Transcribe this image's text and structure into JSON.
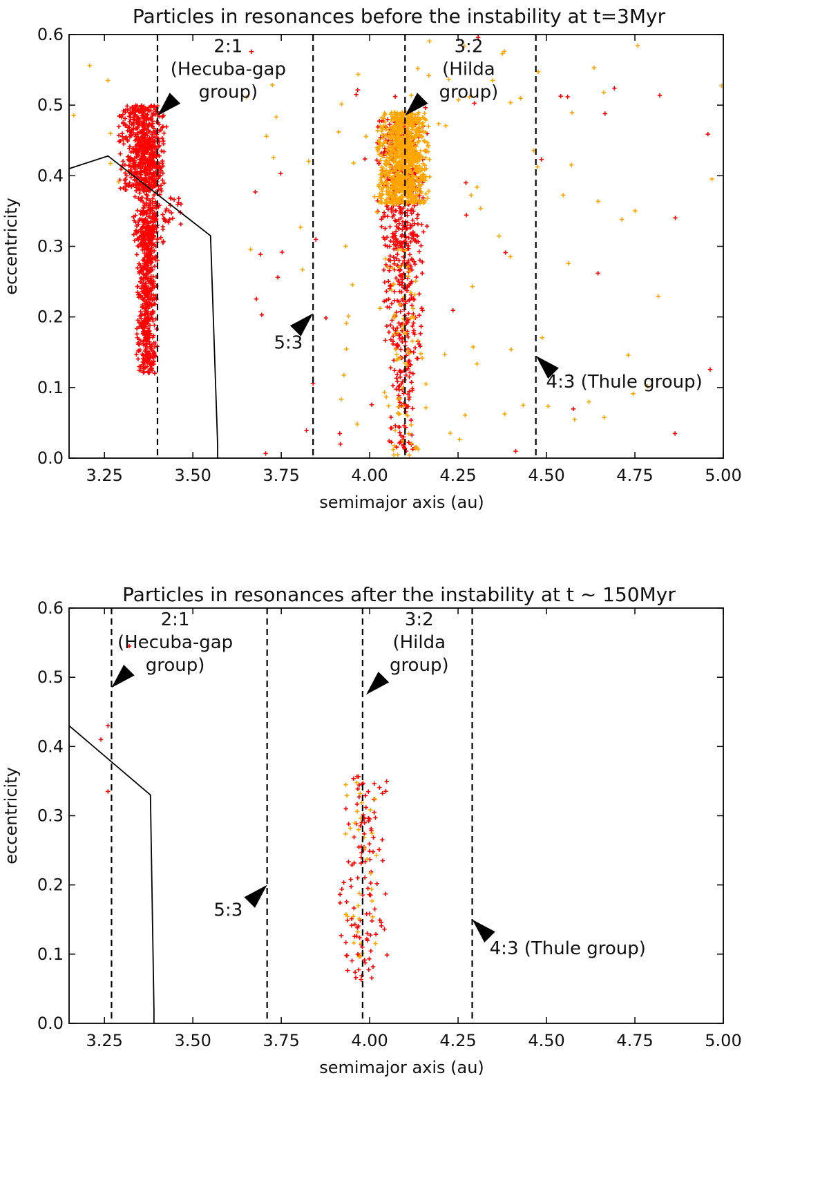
{
  "chart_data": [
    {
      "type": "scatter",
      "title": "Particles in resonances before the instability at t=3Myr",
      "xlabel": "semimajor axis (au)",
      "ylabel": "eccentricity",
      "xlim": [
        3.15,
        5.0
      ],
      "ylim": [
        0.0,
        0.6
      ],
      "x_ticks": [
        3.25,
        3.5,
        3.75,
        4.0,
        4.25,
        4.5,
        4.75,
        5.0
      ],
      "x_tick_labels": [
        "3.25",
        "3.50",
        "3.75",
        "4.00",
        "4.25",
        "4.50",
        "4.75",
        "5.00"
      ],
      "y_ticks": [
        0.0,
        0.1,
        0.2,
        0.3,
        0.4,
        0.5,
        0.6
      ],
      "y_tick_labels": [
        "0.0",
        "0.1",
        "0.2",
        "0.3",
        "0.4",
        "0.5",
        "0.6"
      ],
      "colors": {
        "red": "#ff0000",
        "orange": "#ffa500",
        "line": "#000000"
      },
      "boundary_line": {
        "x": [
          3.15,
          3.26,
          3.55,
          3.57,
          3.57
        ],
        "y": [
          0.41,
          0.428,
          0.315,
          0.02,
          0.0
        ]
      },
      "resonance_lines": [
        3.4,
        3.84,
        4.1,
        4.47
      ],
      "labels": [
        {
          "id": "res21",
          "lines": [
            "2:1",
            "(Hecuba-gap",
            "group)"
          ],
          "x": 3.6,
          "y": 0.575
        },
        {
          "id": "res32",
          "lines": [
            "3:2",
            "(Hilda",
            "group)"
          ],
          "x": 4.28,
          "y": 0.575
        },
        {
          "id": "res53",
          "lines": [
            "5:3"
          ],
          "x": 3.77,
          "y": 0.155
        },
        {
          "id": "res43",
          "lines": [
            "4:3 (Thule group)"
          ],
          "x": 4.72,
          "y": 0.1
        }
      ],
      "arrows": [
        {
          "id": "arrow21",
          "tip_x": 3.4,
          "tip_y": 0.485,
          "dir_x": 1,
          "dir_y": 1
        },
        {
          "id": "arrow32",
          "tip_x": 4.1,
          "tip_y": 0.485,
          "dir_x": 1,
          "dir_y": 1
        },
        {
          "id": "arrow53",
          "tip_x": 3.84,
          "tip_y": 0.205,
          "dir_x": -1,
          "dir_y": -1
        },
        {
          "id": "arrow43",
          "tip_x": 4.47,
          "tip_y": 0.145,
          "dir_x": 1,
          "dir_y": -1
        }
      ],
      "series": [
        {
          "name": "red",
          "color": "#ff0000",
          "clusters": [
            {
              "x": [
                3.29,
                3.43
              ],
              "y": [
                0.38,
                0.5
              ],
              "n": 500
            },
            {
              "x": [
                3.33,
                3.42
              ],
              "y": [
                0.3,
                0.45
              ],
              "n": 300
            },
            {
              "x": [
                3.34,
                3.4
              ],
              "y": [
                0.12,
                0.34
              ],
              "n": 500
            },
            {
              "x": [
                3.42,
                3.47
              ],
              "y": [
                0.33,
                0.37
              ],
              "n": 20
            },
            {
              "x": [
                4.02,
                4.17
              ],
              "y": [
                0.3,
                0.48
              ],
              "n": 320
            },
            {
              "x": [
                4.04,
                4.15
              ],
              "y": [
                0.15,
                0.32
              ],
              "n": 200
            },
            {
              "x": [
                4.05,
                4.14
              ],
              "y": [
                0.0,
                0.15
              ],
              "n": 90
            },
            {
              "x": [
                3.6,
                5.0
              ],
              "y": [
                0.0,
                0.6
              ],
              "n": 45
            }
          ]
        },
        {
          "name": "orange",
          "color": "#ffa500",
          "clusters": [
            {
              "x": [
                4.02,
                4.17
              ],
              "y": [
                0.36,
                0.49
              ],
              "n": 900
            },
            {
              "x": [
                4.04,
                4.15
              ],
              "y": [
                0.0,
                0.3
              ],
              "n": 70
            },
            {
              "x": [
                3.15,
                3.3
              ],
              "y": [
                0.36,
                0.56
              ],
              "n": 6
            },
            {
              "x": [
                3.5,
                5.0
              ],
              "y": [
                0.0,
                0.6
              ],
              "n": 90
            }
          ]
        }
      ]
    },
    {
      "type": "scatter",
      "title": "Particles in resonances after the instability at t ∼ 150Myr",
      "xlabel": "semimajor axis (au)",
      "ylabel": "eccentricity",
      "xlim": [
        3.15,
        5.0
      ],
      "ylim": [
        0.0,
        0.6
      ],
      "x_ticks": [
        3.25,
        3.5,
        3.75,
        4.0,
        4.25,
        4.5,
        4.75,
        5.0
      ],
      "x_tick_labels": [
        "3.25",
        "3.50",
        "3.75",
        "4.00",
        "4.25",
        "4.50",
        "4.75",
        "5.00"
      ],
      "y_ticks": [
        0.0,
        0.1,
        0.2,
        0.3,
        0.4,
        0.5,
        0.6
      ],
      "y_tick_labels": [
        "0.0",
        "0.1",
        "0.2",
        "0.3",
        "0.4",
        "0.5",
        "0.6"
      ],
      "colors": {
        "red": "#ff0000",
        "orange": "#ffa500",
        "line": "#000000"
      },
      "boundary_line": {
        "x": [
          3.15,
          3.38,
          3.39,
          3.39
        ],
        "y": [
          0.43,
          0.33,
          0.02,
          0.0
        ]
      },
      "resonance_lines": [
        3.27,
        3.71,
        3.98,
        4.29
      ],
      "labels": [
        {
          "id": "res21",
          "lines": [
            "2:1",
            "(Hecuba-gap",
            "group)"
          ],
          "x": 3.45,
          "y": 0.575
        },
        {
          "id": "res32",
          "lines": [
            "3:2",
            "(Hilda",
            "group)"
          ],
          "x": 4.14,
          "y": 0.575
        },
        {
          "id": "res53",
          "lines": [
            "5:3"
          ],
          "x": 3.6,
          "y": 0.155
        },
        {
          "id": "res43",
          "lines": [
            "4:3 (Thule group)"
          ],
          "x": 4.56,
          "y": 0.1
        }
      ],
      "arrows": [
        {
          "id": "arrow21",
          "tip_x": 3.27,
          "tip_y": 0.485,
          "dir_x": 1,
          "dir_y": 1
        },
        {
          "id": "arrow32",
          "tip_x": 3.99,
          "tip_y": 0.475,
          "dir_x": 1,
          "dir_y": 1
        },
        {
          "id": "arrow53",
          "tip_x": 3.71,
          "tip_y": 0.2,
          "dir_x": -1,
          "dir_y": -1
        },
        {
          "id": "arrow43",
          "tip_x": 4.29,
          "tip_y": 0.15,
          "dir_x": 1,
          "dir_y": -1
        }
      ],
      "series": [
        {
          "name": "red",
          "color": "#ff0000",
          "clusters": [
            {
              "x": [
                3.91,
                4.05
              ],
              "y": [
                0.06,
                0.36
              ],
              "n": 120
            }
          ],
          "points": [
            [
              3.24,
              0.41
            ],
            [
              3.26,
              0.43
            ],
            [
              3.26,
              0.335
            ],
            [
              3.32,
              0.545
            ]
          ]
        },
        {
          "name": "orange",
          "color": "#ffa500",
          "clusters": [
            {
              "x": [
                3.93,
                4.02
              ],
              "y": [
                0.08,
                0.35
              ],
              "n": 35
            }
          ]
        }
      ]
    }
  ]
}
